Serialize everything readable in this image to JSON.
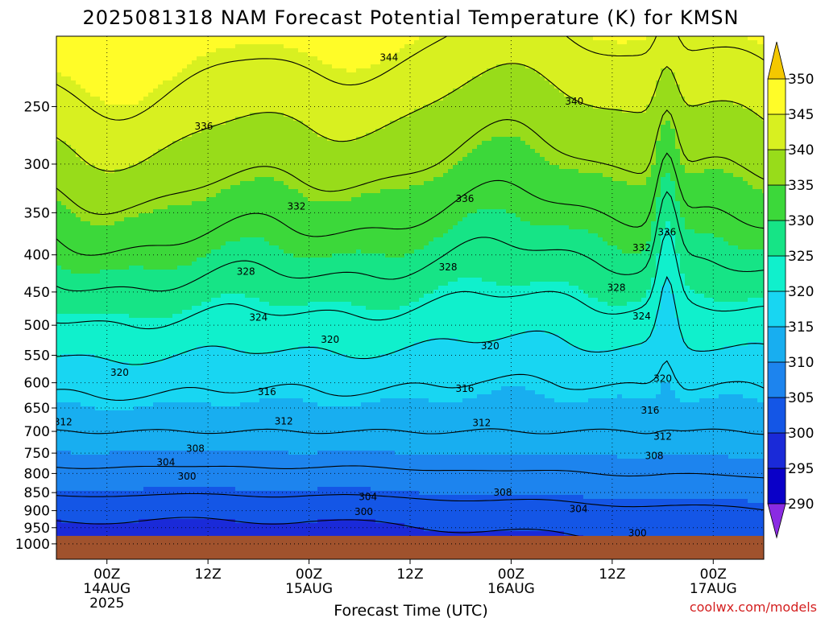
{
  "chart_data": {
    "type": "heatmap",
    "title": "2025081318 NAM Forecast Potential Temperature (K) for KMSN",
    "xlabel": "Forecast Time (UTC)",
    "credit": "coolwx.com/models",
    "y_axis": {
      "scale": "log-pressure",
      "range_hpa": [
        200,
        1050
      ],
      "ticks": [
        "250",
        "300",
        "350",
        "400",
        "450",
        "500",
        "550",
        "600",
        "650",
        "700",
        "750",
        "800",
        "850",
        "900",
        "950",
        "1000"
      ]
    },
    "x_axis": {
      "range_hours": [
        0,
        84
      ],
      "ticks": [
        {
          "hour": 6,
          "label": "00Z",
          "date": "14AUG",
          "year": "2025"
        },
        {
          "hour": 18,
          "label": "12Z",
          "date": "",
          "year": ""
        },
        {
          "hour": 30,
          "label": "00Z",
          "date": "15AUG",
          "year": ""
        },
        {
          "hour": 42,
          "label": "12Z",
          "date": "",
          "year": ""
        },
        {
          "hour": 54,
          "label": "00Z",
          "date": "16AUG",
          "year": ""
        },
        {
          "hour": 66,
          "label": "12Z",
          "date": "",
          "year": ""
        },
        {
          "hour": 78,
          "label": "00Z",
          "date": "17AUG",
          "year": ""
        }
      ]
    },
    "grid": true,
    "surface_pressure_hpa": 975,
    "colorbar": {
      "levels": [
        "290",
        "295",
        "300",
        "305",
        "310",
        "315",
        "320",
        "325",
        "330",
        "335",
        "340",
        "345",
        "350"
      ],
      "colors": [
        "#2818e6",
        "#0a00c8",
        "#1a2ad8",
        "#1456e6",
        "#1d84ee",
        "#18aef0",
        "#18d6f2",
        "#10f0cc",
        "#16e486",
        "#3cd83a",
        "#98dc1a",
        "#d8f020",
        "#fffc28",
        "#f4c800"
      ]
    },
    "contour_levels": [
      300,
      304,
      308,
      312,
      316,
      320,
      324,
      328,
      332,
      336,
      340,
      344
    ],
    "theta_profile": {
      "pressure_hpa": [
        1000,
        950,
        900,
        850,
        800,
        750,
        700,
        650,
        600,
        550,
        500,
        450,
        400,
        350,
        300,
        250,
        200
      ],
      "theta_k": [
        298,
        300,
        302,
        305,
        307.5,
        310,
        312,
        314.5,
        316.5,
        319.5,
        322.5,
        326,
        329.5,
        333,
        337,
        341,
        346
      ]
    },
    "labeled_contours": [
      {
        "value": "344",
        "hour": 39.5,
        "pressure": 214
      },
      {
        "value": "336",
        "hour": 17.5,
        "pressure": 266
      },
      {
        "value": "340",
        "hour": 61.5,
        "pressure": 246
      },
      {
        "value": "336",
        "hour": 48.5,
        "pressure": 335
      },
      {
        "value": "336",
        "hour": 72.5,
        "pressure": 372
      },
      {
        "value": "332",
        "hour": 28.5,
        "pressure": 343
      },
      {
        "value": "332",
        "hour": 69.5,
        "pressure": 391
      },
      {
        "value": "328",
        "hour": 22.5,
        "pressure": 422
      },
      {
        "value": "328",
        "hour": 46.5,
        "pressure": 416
      },
      {
        "value": "328",
        "hour": 66.5,
        "pressure": 444
      },
      {
        "value": "324",
        "hour": 24,
        "pressure": 488
      },
      {
        "value": "324",
        "hour": 69.5,
        "pressure": 486
      },
      {
        "value": "320",
        "hour": 32.5,
        "pressure": 523
      },
      {
        "value": "320",
        "hour": 7.5,
        "pressure": 581
      },
      {
        "value": "320",
        "hour": 51.5,
        "pressure": 534
      },
      {
        "value": "320",
        "hour": 72,
        "pressure": 592
      },
      {
        "value": "316",
        "hour": 25,
        "pressure": 618
      },
      {
        "value": "316",
        "hour": 48.5,
        "pressure": 611
      },
      {
        "value": "316",
        "hour": 70.5,
        "pressure": 655
      },
      {
        "value": "312",
        "hour": 0.8,
        "pressure": 680
      },
      {
        "value": "312",
        "hour": 27,
        "pressure": 678
      },
      {
        "value": "312",
        "hour": 50.5,
        "pressure": 681
      },
      {
        "value": "312",
        "hour": 72,
        "pressure": 712
      },
      {
        "value": "308",
        "hour": 16.5,
        "pressure": 739
      },
      {
        "value": "308",
        "hour": 71,
        "pressure": 757
      },
      {
        "value": "304",
        "hour": 13,
        "pressure": 772
      },
      {
        "value": "304",
        "hour": 37,
        "pressure": 862
      },
      {
        "value": "304",
        "hour": 62,
        "pressure": 895
      },
      {
        "value": "300",
        "hour": 15.5,
        "pressure": 807
      },
      {
        "value": "300",
        "hour": 36.5,
        "pressure": 903
      },
      {
        "value": "300",
        "hour": 69,
        "pressure": 967
      },
      {
        "value": "308",
        "hour": 53,
        "pressure": 850
      }
    ]
  }
}
